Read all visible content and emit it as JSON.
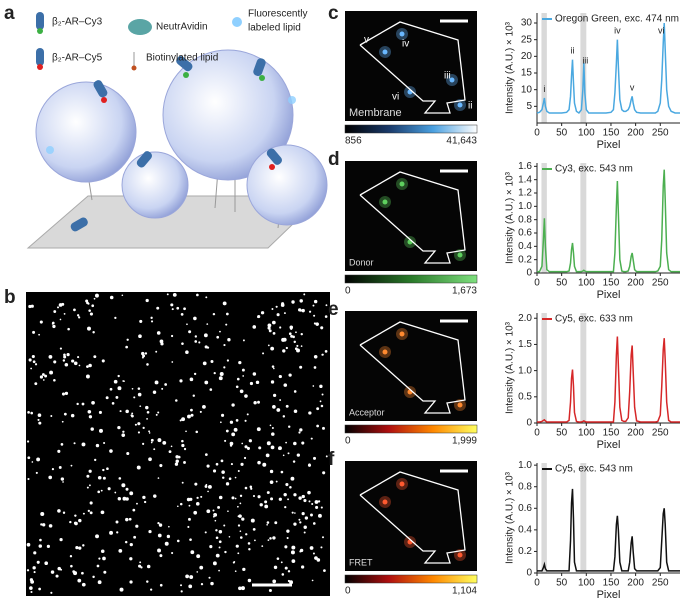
{
  "panel_labels": [
    "a",
    "b",
    "c",
    "d",
    "e",
    "f"
  ],
  "schematic": {
    "cy3": "β₂-AR–Cy3",
    "cy5": "β₂-AR–Cy5",
    "neutravidin": "NeutrAvidin",
    "biotin": "Biotinylated lipid",
    "fluor_lipid": [
      "Fluorescently",
      "labeled lipid"
    ]
  },
  "images": [
    {
      "label": "Membrane",
      "colorbar": [
        "856",
        "41,643"
      ],
      "colormap": [
        "#000000",
        "#1a3a6a",
        "#4aa0e0",
        "#ffffff"
      ],
      "spot_color": "#6ab8ff",
      "spot_labels": [
        "v",
        "iv",
        "iii",
        "vi",
        "ii"
      ]
    },
    {
      "label": "Donor",
      "colorbar": [
        "0",
        "1,673"
      ],
      "colormap": [
        "#000000",
        "#2a7a2a",
        "#7fe07f"
      ],
      "spot_color": "#5fd05f"
    },
    {
      "label": "Acceptor",
      "colorbar": [
        "0",
        "1,999"
      ],
      "colormap": [
        "#000000",
        "#b01010",
        "#ff8800",
        "#ffff60"
      ],
      "spot_color": "#ff8a30"
    },
    {
      "label": "FRET",
      "colorbar": [
        "0",
        "1,104"
      ],
      "colormap": [
        "#000000",
        "#b01010",
        "#ff8800",
        "#ffff60"
      ],
      "spot_color": "#ff5a30"
    }
  ],
  "chart_data": [
    {
      "type": "line",
      "xlabel": "Pixel",
      "ylabel": "Intensity (A.U.) × 10³",
      "x": [
        0,
        5,
        10,
        13,
        15,
        17,
        20,
        25,
        30,
        40,
        50,
        60,
        65,
        68,
        70,
        72,
        74,
        76,
        80,
        85,
        90,
        93,
        95,
        97,
        100,
        105,
        110,
        120,
        130,
        140,
        150,
        155,
        158,
        161,
        163,
        165,
        168,
        172,
        176,
        180,
        185,
        188,
        191,
        193,
        195,
        198,
        202,
        210,
        220,
        230,
        240,
        245,
        250,
        253,
        256,
        258,
        260,
        263,
        267,
        272,
        280,
        290
      ],
      "series": [
        {
          "name": "Oregon Green, exc. 474 nm",
          "color": "#4aa8e0",
          "values": [
            3,
            3.2,
            4,
            6,
            7.5,
            5,
            3.5,
            3,
            3,
            3,
            3,
            3.2,
            4,
            8,
            14,
            19,
            12,
            6,
            3.5,
            3,
            4,
            10,
            18,
            9,
            4,
            3,
            3,
            3,
            3,
            3,
            3.2,
            4,
            9,
            18,
            25,
            17,
            7,
            4,
            3.5,
            3.5,
            4,
            5,
            7,
            8,
            6,
            4,
            3.2,
            3,
            3,
            3,
            3,
            3.5,
            6,
            13,
            24,
            30,
            22,
            10,
            5,
            3.5,
            3,
            3
          ]
        }
      ],
      "xlim": [
        0,
        290
      ],
      "xticks": [
        0,
        50,
        100,
        150,
        200,
        250
      ],
      "ylim": [
        0,
        33
      ],
      "yticks": [
        5,
        10,
        15,
        20,
        25,
        30
      ],
      "highlight_ranges": [
        [
          9,
          20
        ],
        [
          88,
          100
        ]
      ],
      "annotations": [
        {
          "text": "i",
          "x": 15,
          "y": 10
        },
        {
          "text": "ii",
          "x": 72,
          "y": 21.5
        },
        {
          "text": "iii",
          "x": 98,
          "y": 18.5
        },
        {
          "text": "iv",
          "x": 163,
          "y": 27.5
        },
        {
          "text": "v",
          "x": 193,
          "y": 10.5
        },
        {
          "text": "vi",
          "x": 252,
          "y": 27.5
        }
      ]
    },
    {
      "type": "line",
      "xlabel": "Pixel",
      "ylabel": "Intensity (A.U.) × 10³",
      "x": [
        0,
        5,
        10,
        13,
        15,
        17,
        20,
        25,
        30,
        40,
        50,
        60,
        65,
        68,
        70,
        72,
        74,
        76,
        80,
        85,
        90,
        93,
        95,
        97,
        100,
        105,
        110,
        120,
        130,
        140,
        150,
        155,
        158,
        161,
        163,
        165,
        168,
        172,
        176,
        180,
        185,
        188,
        191,
        193,
        195,
        198,
        202,
        210,
        220,
        230,
        240,
        245,
        250,
        253,
        256,
        258,
        260,
        263,
        267,
        272,
        280,
        290
      ],
      "series": [
        {
          "name": "Cy3, exc. 543 nm",
          "color": "#4caf50",
          "values": [
            0.02,
            0.02,
            0.1,
            0.5,
            0.82,
            0.4,
            0.05,
            0.02,
            0.02,
            0.02,
            0.02,
            0.02,
            0.03,
            0.15,
            0.35,
            0.45,
            0.3,
            0.1,
            0.02,
            0.02,
            0.02,
            0.03,
            0.04,
            0.03,
            0.02,
            0.02,
            0.02,
            0.02,
            0.02,
            0.02,
            0.02,
            0.02,
            0.3,
            1.0,
            1.38,
            0.9,
            0.2,
            0.03,
            0.02,
            0.02,
            0.03,
            0.1,
            0.25,
            0.3,
            0.2,
            0.05,
            0.02,
            0.02,
            0.02,
            0.02,
            0.02,
            0.03,
            0.1,
            0.5,
            1.3,
            1.55,
            1.1,
            0.3,
            0.05,
            0.02,
            0.02,
            0.02
          ]
        }
      ],
      "xlim": [
        0,
        290
      ],
      "xticks": [
        0,
        50,
        100,
        150,
        200,
        250
      ],
      "ylim": [
        0,
        1.65
      ],
      "yticks": [
        0,
        0.2,
        0.4,
        0.6,
        0.8,
        {
          "value": 1,
          "label": "1.0"
        },
        1.2,
        1.4,
        1.6
      ],
      "highlight_ranges": [
        [
          9,
          20
        ],
        [
          88,
          100
        ]
      ]
    },
    {
      "type": "line",
      "xlabel": "Pixel",
      "ylabel": "Intensity (A.U.) × 10³",
      "x": [
        0,
        5,
        10,
        13,
        15,
        17,
        20,
        25,
        30,
        40,
        50,
        60,
        65,
        68,
        70,
        72,
        74,
        76,
        80,
        85,
        90,
        93,
        95,
        97,
        100,
        105,
        110,
        120,
        130,
        140,
        150,
        155,
        158,
        161,
        163,
        165,
        168,
        172,
        176,
        180,
        185,
        188,
        191,
        193,
        195,
        198,
        202,
        210,
        220,
        230,
        240,
        245,
        250,
        253,
        256,
        258,
        260,
        263,
        267,
        272,
        280,
        290
      ],
      "series": [
        {
          "name": "Cy5, exc. 633 nm",
          "color": "#d62728",
          "values": [
            0.02,
            0.02,
            0.03,
            0.05,
            0.06,
            0.04,
            0.02,
            0.02,
            0.02,
            0.02,
            0.02,
            0.02,
            0.05,
            0.4,
            0.85,
            1.02,
            0.7,
            0.2,
            0.03,
            0.02,
            0.02,
            0.03,
            0.04,
            0.03,
            0.02,
            0.02,
            0.02,
            0.02,
            0.02,
            0.02,
            0.02,
            0.02,
            0.4,
            1.3,
            1.65,
            1.1,
            0.3,
            0.05,
            0.03,
            0.03,
            0.1,
            0.6,
            1.3,
            1.48,
            1.0,
            0.3,
            0.04,
            0.02,
            0.02,
            0.02,
            0.02,
            0.03,
            0.15,
            0.7,
            1.4,
            1.62,
            1.2,
            0.4,
            0.05,
            0.02,
            0.02,
            0.02
          ]
        }
      ],
      "xlim": [
        0,
        290
      ],
      "xticks": [
        0,
        50,
        100,
        150,
        200,
        250
      ],
      "ylim": [
        0,
        2.1
      ],
      "yticks": [
        0,
        0.5,
        {
          "value": 1,
          "label": "1.0"
        },
        1.5,
        {
          "value": 2,
          "label": "2.0"
        }
      ],
      "highlight_ranges": [
        [
          9,
          20
        ],
        [
          88,
          100
        ]
      ]
    },
    {
      "type": "line",
      "xlabel": "Pixel",
      "ylabel": "Intensity (A.U.) × 10³",
      "x": [
        0,
        5,
        10,
        13,
        15,
        17,
        20,
        25,
        30,
        40,
        50,
        60,
        65,
        68,
        70,
        72,
        74,
        76,
        80,
        85,
        90,
        93,
        95,
        97,
        100,
        105,
        110,
        120,
        130,
        140,
        150,
        155,
        158,
        161,
        163,
        165,
        168,
        172,
        176,
        180,
        185,
        188,
        191,
        193,
        195,
        198,
        202,
        210,
        220,
        230,
        240,
        245,
        250,
        253,
        256,
        258,
        260,
        263,
        267,
        272,
        280,
        290
      ],
      "series": [
        {
          "name": "Cy5, exc. 543 nm",
          "color": "#111111",
          "values": [
            0.02,
            0.02,
            0.02,
            0.05,
            0.08,
            0.04,
            0.02,
            0.02,
            0.02,
            0.02,
            0.02,
            0.02,
            0.02,
            0.3,
            0.65,
            0.78,
            0.5,
            0.1,
            0.02,
            0.02,
            0.02,
            0.02,
            0.02,
            0.02,
            0.02,
            0.02,
            0.02,
            0.02,
            0.02,
            0.02,
            0.02,
            0.02,
            0.15,
            0.45,
            0.53,
            0.4,
            0.1,
            0.02,
            0.02,
            0.02,
            0.02,
            0.1,
            0.28,
            0.34,
            0.2,
            0.04,
            0.02,
            0.02,
            0.02,
            0.02,
            0.02,
            0.02,
            0.05,
            0.3,
            0.55,
            0.6,
            0.45,
            0.1,
            0.02,
            0.02,
            0.02,
            0.02
          ]
        }
      ],
      "xlim": [
        0,
        290
      ],
      "xticks": [
        0,
        50,
        100,
        150,
        200,
        250
      ],
      "ylim": [
        0,
        1.02
      ],
      "yticks": [
        0,
        0.2,
        0.4,
        0.6,
        0.8,
        {
          "value": 1,
          "label": "1.0"
        }
      ],
      "highlight_ranges": [
        [
          9,
          20
        ],
        [
          88,
          100
        ]
      ]
    }
  ]
}
